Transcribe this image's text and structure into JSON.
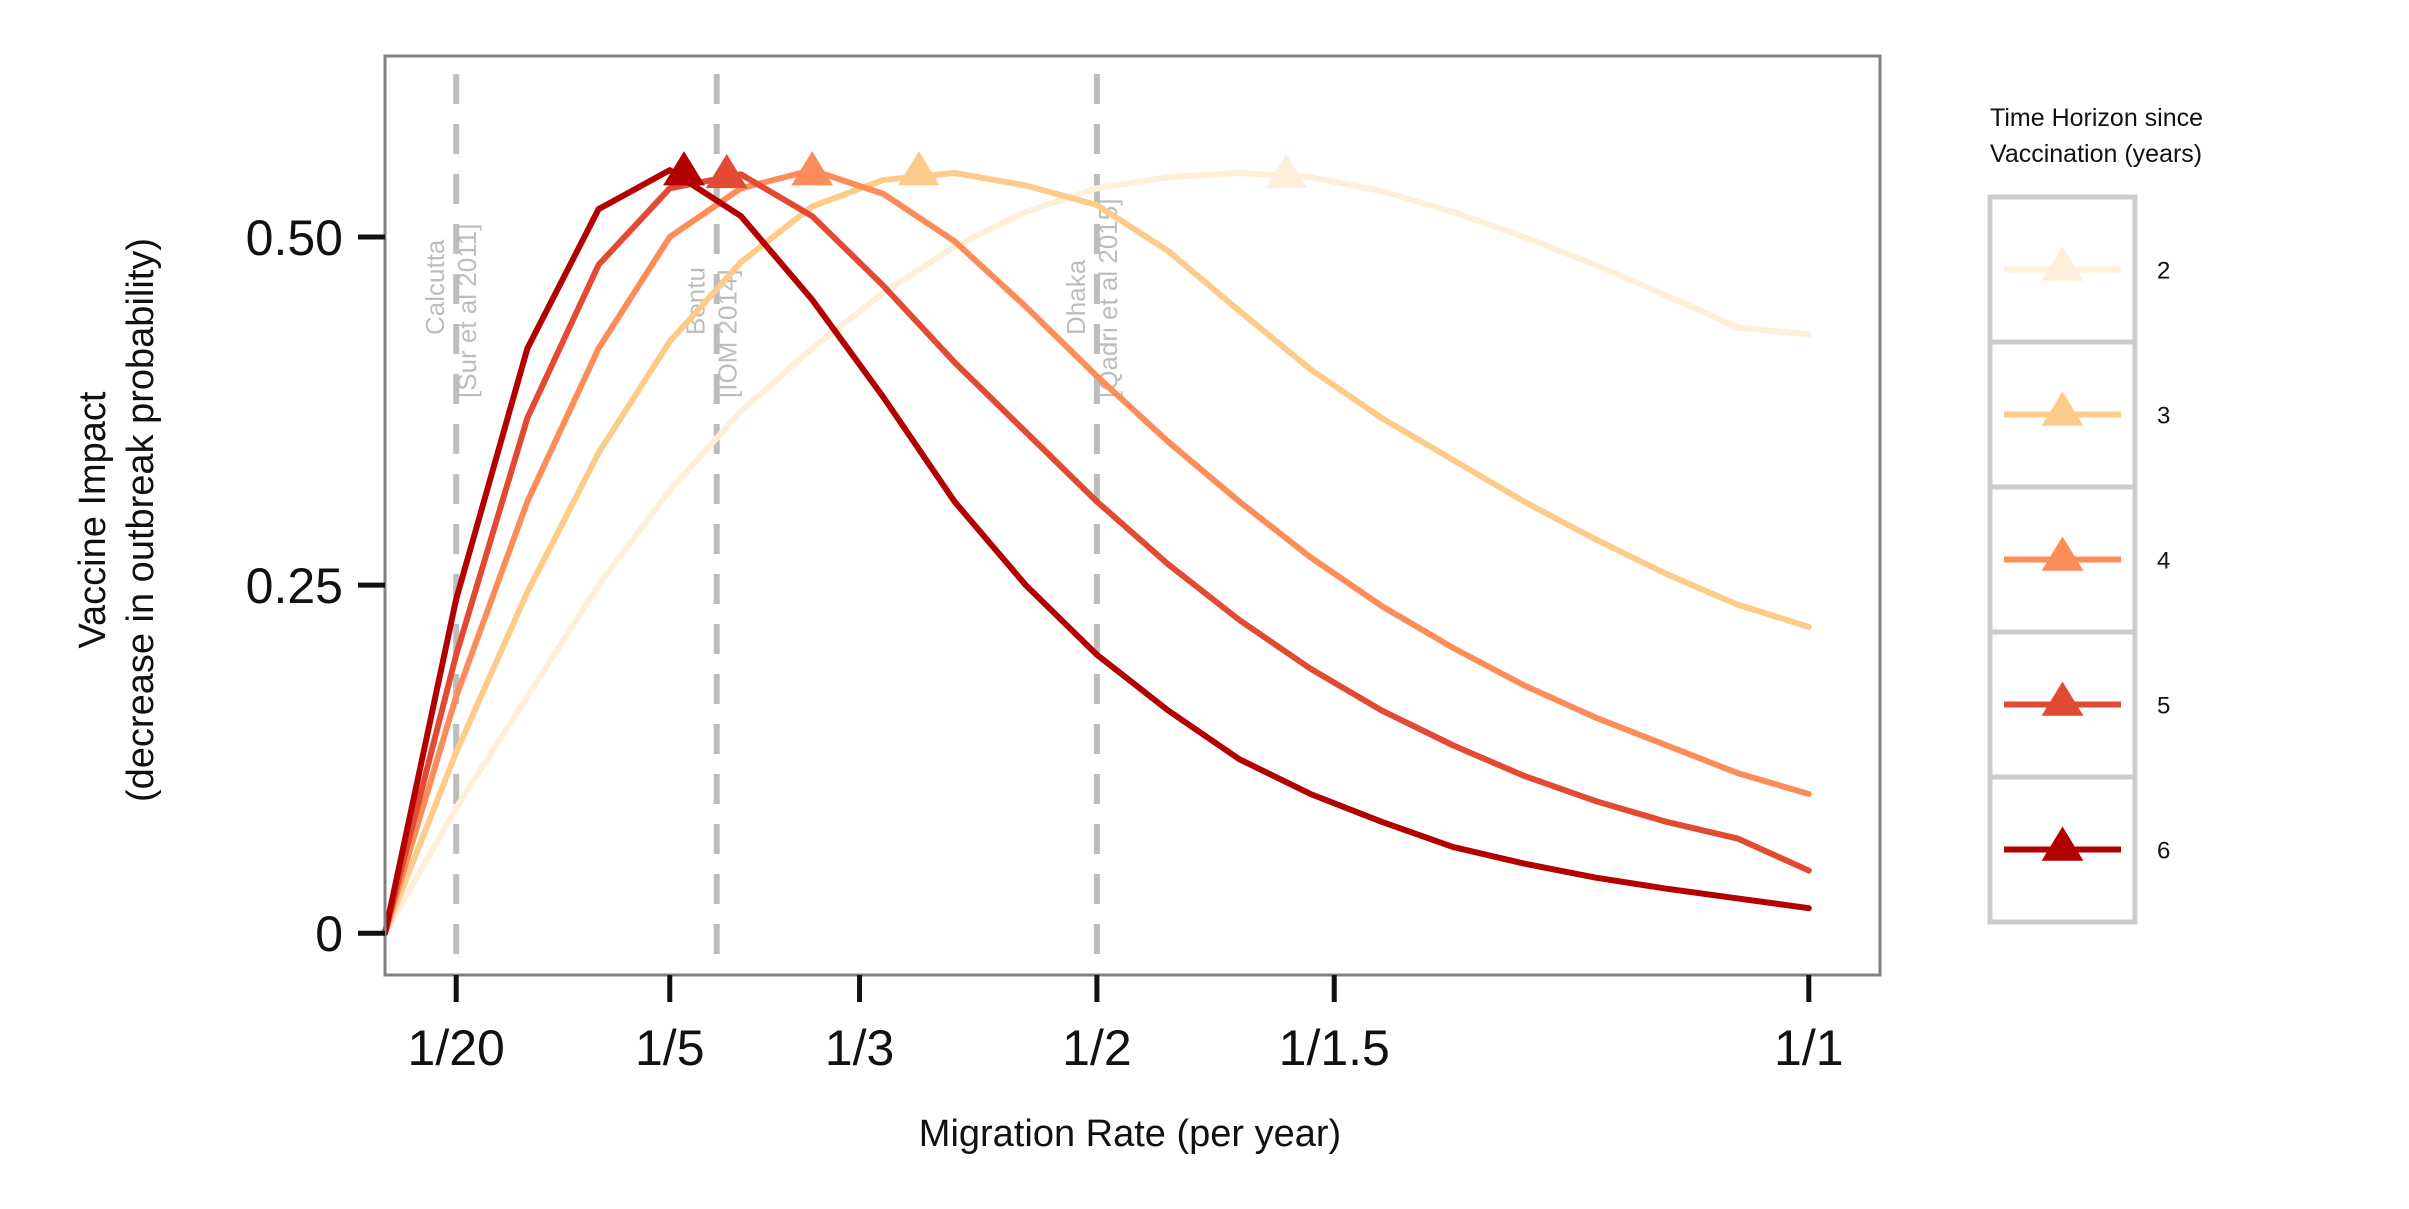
{
  "chart_data": {
    "type": "line",
    "xlabel": "Migration Rate (per year)",
    "ylabel_line1": "Vaccine Impact",
    "ylabel_line2": "(decrease in outbreak probability)",
    "ylim": [
      -0.03,
      0.63
    ],
    "y_ticks": [
      {
        "value": 0,
        "label": "0"
      },
      {
        "value": 0.25,
        "label": "0.25"
      },
      {
        "value": 0.5,
        "label": "0.50"
      }
    ],
    "x_scale": "reciprocal",
    "xlim_rate": [
      0.0,
      1.05
    ],
    "x_ticks": [
      {
        "rate": 0.05,
        "label": "1/20"
      },
      {
        "rate": 0.2,
        "label": "1/5"
      },
      {
        "rate": 0.3333,
        "label": "1/3"
      },
      {
        "rate": 0.5,
        "label": "1/2"
      },
      {
        "rate": 0.6667,
        "label": "1/1.5"
      },
      {
        "rate": 1.0,
        "label": "1/1"
      }
    ],
    "grid": false,
    "annotations": [
      {
        "rate": 0.05,
        "name": "Calcutta",
        "source": "[Sur et al 2011]"
      },
      {
        "rate": 0.233,
        "name": "Bentu",
        "source": "[IOM 2014]"
      },
      {
        "rate": 0.5,
        "name": "Dhaka",
        "source": "[Qadri et al 2015]"
      }
    ],
    "legend": {
      "title_line1": "Time Horizon since",
      "title_line2": "Vaccination (years)",
      "placement": "right"
    },
    "series": [
      {
        "name": "2",
        "color": "#fdefd9",
        "x": [
          0.0,
          0.05,
          0.1,
          0.15,
          0.2,
          0.25,
          0.3,
          0.35,
          0.4,
          0.45,
          0.5,
          0.55,
          0.6,
          0.65,
          0.7,
          0.75,
          0.8,
          0.85,
          0.9,
          0.95,
          1.0
        ],
        "y": [
          0.0,
          0.09,
          0.17,
          0.25,
          0.318,
          0.375,
          0.42,
          0.46,
          0.493,
          0.518,
          0.535,
          0.543,
          0.546,
          0.543,
          0.533,
          0.518,
          0.5,
          0.48,
          0.458,
          0.435,
          0.43
        ],
        "peak": [
          0.633,
          0.546
        ]
      },
      {
        "name": "3",
        "color": "#fdcc8a",
        "x": [
          0.0,
          0.05,
          0.1,
          0.15,
          0.2,
          0.25,
          0.3,
          0.35,
          0.4,
          0.45,
          0.5,
          0.55,
          0.6,
          0.65,
          0.7,
          0.75,
          0.8,
          0.85,
          0.9,
          0.95,
          1.0
        ],
        "y": [
          0.0,
          0.13,
          0.245,
          0.345,
          0.425,
          0.482,
          0.522,
          0.541,
          0.546,
          0.537,
          0.523,
          0.49,
          0.447,
          0.405,
          0.37,
          0.34,
          0.31,
          0.283,
          0.258,
          0.236,
          0.22
        ],
        "peak": [
          0.375,
          0.548
        ]
      },
      {
        "name": "4",
        "color": "#fc8d59",
        "x": [
          0.0,
          0.05,
          0.1,
          0.15,
          0.2,
          0.25,
          0.3,
          0.35,
          0.4,
          0.45,
          0.5,
          0.55,
          0.6,
          0.65,
          0.7,
          0.75,
          0.8,
          0.85,
          0.9,
          0.95,
          1.0
        ],
        "y": [
          0.0,
          0.17,
          0.31,
          0.42,
          0.5,
          0.535,
          0.548,
          0.531,
          0.497,
          0.45,
          0.4,
          0.353,
          0.31,
          0.27,
          0.235,
          0.205,
          0.178,
          0.155,
          0.135,
          0.115,
          0.1
        ],
        "peak": [
          0.3,
          0.548
        ]
      },
      {
        "name": "5",
        "color": "#e34a33",
        "x": [
          0.0,
          0.05,
          0.1,
          0.15,
          0.2,
          0.25,
          0.3,
          0.35,
          0.4,
          0.45,
          0.5,
          0.55,
          0.6,
          0.65,
          0.7,
          0.75,
          0.8,
          0.85,
          0.9,
          0.95,
          1.0
        ],
        "y": [
          0.0,
          0.2,
          0.37,
          0.48,
          0.535,
          0.545,
          0.515,
          0.465,
          0.41,
          0.36,
          0.31,
          0.265,
          0.225,
          0.19,
          0.16,
          0.135,
          0.113,
          0.095,
          0.08,
          0.068,
          0.045
        ],
        "peak": [
          0.24,
          0.546
        ]
      },
      {
        "name": "6",
        "color": "#b30000",
        "x": [
          0.0,
          0.05,
          0.1,
          0.15,
          0.2,
          0.25,
          0.3,
          0.35,
          0.4,
          0.45,
          0.5,
          0.55,
          0.6,
          0.65,
          0.7,
          0.75,
          0.8,
          0.85,
          0.9,
          0.95,
          1.0
        ],
        "y": [
          0.0,
          0.24,
          0.42,
          0.52,
          0.548,
          0.515,
          0.455,
          0.385,
          0.31,
          0.25,
          0.2,
          0.16,
          0.125,
          0.1,
          0.08,
          0.062,
          0.05,
          0.04,
          0.032,
          0.025,
          0.018
        ],
        "peak": [
          0.21,
          0.548
        ]
      }
    ]
  }
}
